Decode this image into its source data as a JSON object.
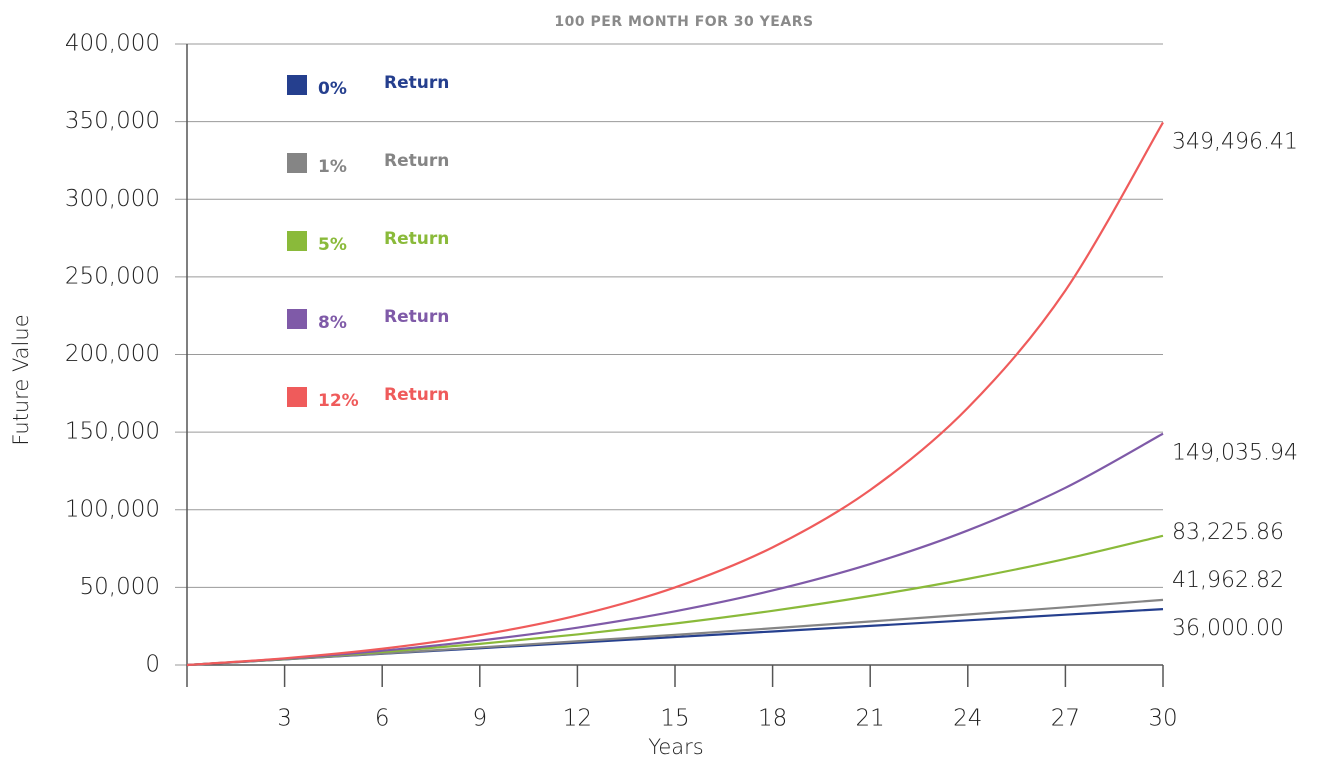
{
  "chart_data": {
    "type": "line",
    "title": "100 PER MONTH FOR 30 YEARS",
    "x_label": "Years",
    "y_label": "Future Value",
    "legend_suffix": "Return",
    "x": [
      0,
      3,
      6,
      9,
      12,
      15,
      18,
      21,
      24,
      27,
      30
    ],
    "xlim": [
      0,
      30
    ],
    "xticks": [
      3,
      6,
      9,
      12,
      15,
      18,
      21,
      24,
      27,
      30
    ],
    "ylim": [
      0,
      400000
    ],
    "yticks": [
      0,
      {
        "value": 50000,
        "label": "50,000"
      },
      {
        "value": 100000,
        "label": "100,000"
      },
      {
        "value": 150000,
        "label": "150,000"
      },
      {
        "value": 200000,
        "label": "200,000"
      },
      {
        "value": 250000,
        "label": "250,000"
      },
      {
        "value": 300000,
        "label": "300,000"
      },
      {
        "value": 350000,
        "label": "350,000"
      },
      {
        "value": 400000,
        "label": "400,000"
      }
    ],
    "grid": true,
    "legend": "upper left",
    "series": [
      {
        "name": "0%",
        "color": "#253f8e",
        "values": [
          0,
          3600,
          7200,
          10800,
          14400,
          18000,
          21600,
          25200,
          28800,
          32400,
          36000
        ],
        "value_labels": [
          null,
          null,
          null,
          null,
          null,
          null,
          null,
          null,
          null,
          null,
          "36,000.00"
        ]
      },
      {
        "name": "1%",
        "color": "#858585",
        "values": [
          0,
          3653,
          7417,
          11296,
          15293,
          19411,
          23654,
          28027,
          32532,
          37175,
          41962.82
        ],
        "value_labels": [
          null,
          null,
          null,
          null,
          null,
          null,
          null,
          null,
          null,
          null,
          "41,962.82"
        ]
      },
      {
        "name": "5%",
        "color": "#8aba3a",
        "values": [
          0,
          3875,
          8376,
          13604,
          19676,
          26729,
          34920,
          44434,
          55484,
          68319,
          83225.86
        ],
        "value_labels": [
          null,
          null,
          null,
          null,
          null,
          null,
          null,
          null,
          null,
          null,
          "83,225.86"
        ]
      },
      {
        "name": "8%",
        "color": "#7f5aa8",
        "values": [
          0,
          4053,
          9202,
          15743,
          24051,
          34603,
          48008,
          65035,
          86662,
          114137,
          149035.94
        ],
        "value_labels": [
          null,
          null,
          null,
          null,
          null,
          null,
          null,
          null,
          null,
          null,
          "149,035.94"
        ]
      },
      {
        "name": "12%",
        "color": "#ef5b5b",
        "values": [
          0,
          4308,
          10471,
          19289,
          31906,
          49958,
          75786,
          112740,
          165613,
          241261,
          349496.41
        ],
        "value_labels": [
          null,
          null,
          null,
          null,
          null,
          null,
          null,
          null,
          null,
          null,
          "349,496.41"
        ]
      }
    ]
  }
}
